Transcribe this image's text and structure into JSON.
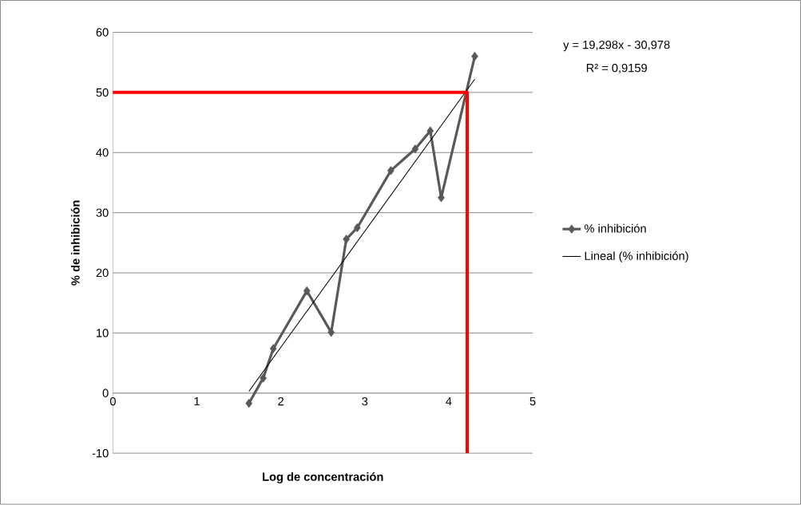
{
  "chart_data": {
    "type": "line",
    "xlabel": "Log de concentración",
    "ylabel": "% de inhibición",
    "annotations": [
      "y = 19,298x - 30,978",
      "R² = 0,9159"
    ],
    "series": [
      {
        "name": "% inhibición",
        "color": "#595959",
        "marker": "diamond",
        "x": [
          1.62,
          1.79,
          1.91,
          2.31,
          2.6,
          2.78,
          2.91,
          3.31,
          3.6,
          3.78,
          3.91,
          4.31
        ],
        "values": [
          -1.7,
          2.5,
          7.4,
          17.0,
          10.1,
          25.6,
          27.5,
          37.0,
          40.6,
          43.6,
          32.5,
          56.0
        ]
      },
      {
        "name": "Lineal (% inhibición)",
        "color": "#000000",
        "marker": "none",
        "x": [
          1.62,
          4.31
        ],
        "values": [
          0.3,
          52.2
        ]
      },
      {
        "color": "#ff0000",
        "marker": "none",
        "x": [
          0,
          4.22,
          4.22
        ],
        "values": [
          50,
          50,
          -10
        ]
      }
    ],
    "xlim": [
      0,
      5
    ],
    "ylim": [
      -10,
      60
    ],
    "xticks": [
      0,
      1,
      2,
      3,
      4,
      5
    ],
    "yticks": [
      -10,
      0,
      10,
      20,
      30,
      40,
      50,
      60
    ],
    "grid": "y",
    "legend": "right"
  }
}
